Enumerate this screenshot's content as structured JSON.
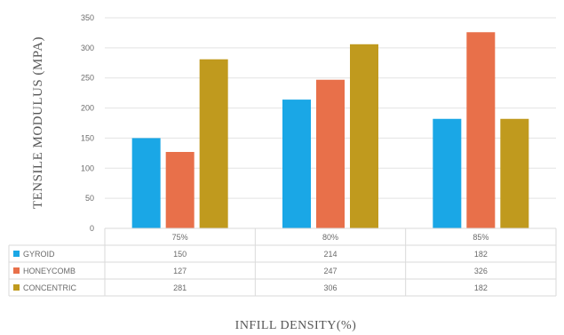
{
  "chart_data": {
    "type": "bar",
    "ylabel": "TENSILE MODULUS (MPA)",
    "xlabel": "INFILL DENSITY(%)",
    "ylim": [
      0,
      350
    ],
    "yticks": [
      0,
      50,
      100,
      150,
      200,
      250,
      300,
      350
    ],
    "grid": true,
    "legend": "data-table-below",
    "categories": [
      "75%",
      "80%",
      "85%"
    ],
    "series": [
      {
        "name": "GYROID",
        "color": "#1aa7e6",
        "values": [
          150,
          214,
          182
        ]
      },
      {
        "name": "HONEYCOMB",
        "color": "#e8704a",
        "values": [
          127,
          247,
          326
        ]
      },
      {
        "name": "CONCENTRIC",
        "color": "#c09a1e",
        "values": [
          281,
          306,
          182
        ]
      }
    ]
  }
}
